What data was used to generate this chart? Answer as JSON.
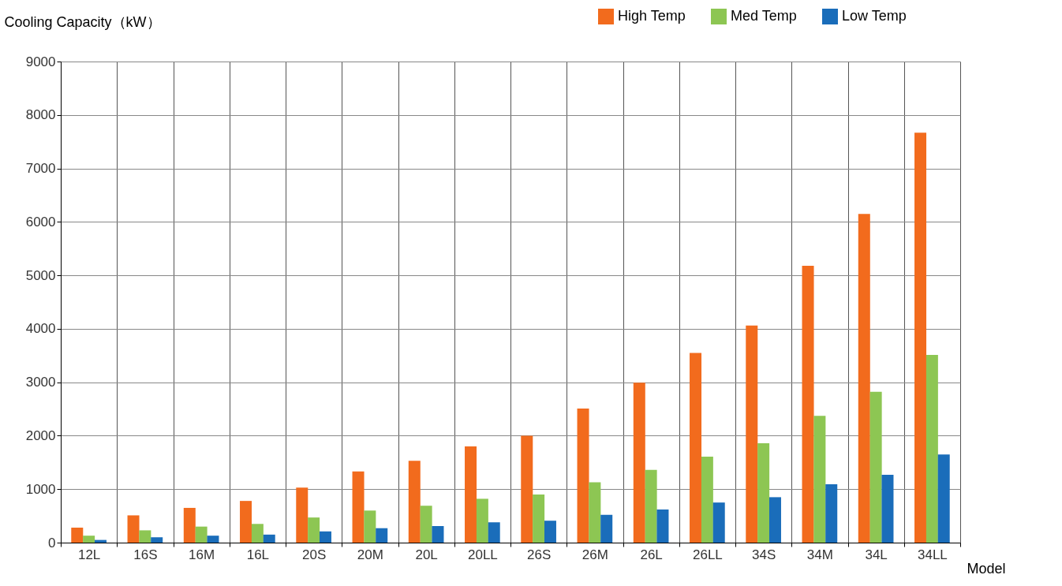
{
  "chart_data": {
    "type": "bar",
    "xlabel": "Model",
    "ylabel": "Cooling Capacity（kW）",
    "categories": [
      "12L",
      "16S",
      "16M",
      "16L",
      "20S",
      "20M",
      "20L",
      "20LL",
      "26S",
      "26M",
      "26L",
      "26LL",
      "34S",
      "34M",
      "34L",
      "34LL"
    ],
    "series": [
      {
        "name": "High Temp",
        "color": "#f26b1d",
        "values": [
          280,
          510,
          650,
          780,
          1030,
          1330,
          1530,
          1800,
          2000,
          2510,
          2990,
          3550,
          4060,
          5180,
          6150,
          7670
        ]
      },
      {
        "name": "Med Temp",
        "color": "#8dc653",
        "values": [
          130,
          230,
          300,
          350,
          470,
          600,
          690,
          820,
          900,
          1130,
          1360,
          1610,
          1860,
          2370,
          2820,
          3510
        ]
      },
      {
        "name": "Low Temp",
        "color": "#1a6dba",
        "values": [
          50,
          100,
          130,
          150,
          210,
          270,
          310,
          380,
          410,
          520,
          620,
          750,
          850,
          1090,
          1270,
          1650
        ]
      }
    ],
    "ylim": [
      0,
      9000
    ],
    "yticks": [
      0,
      1000,
      2000,
      3000,
      4000,
      5000,
      6000,
      7000,
      8000,
      9000
    ],
    "grid": true,
    "legend": "top right"
  }
}
